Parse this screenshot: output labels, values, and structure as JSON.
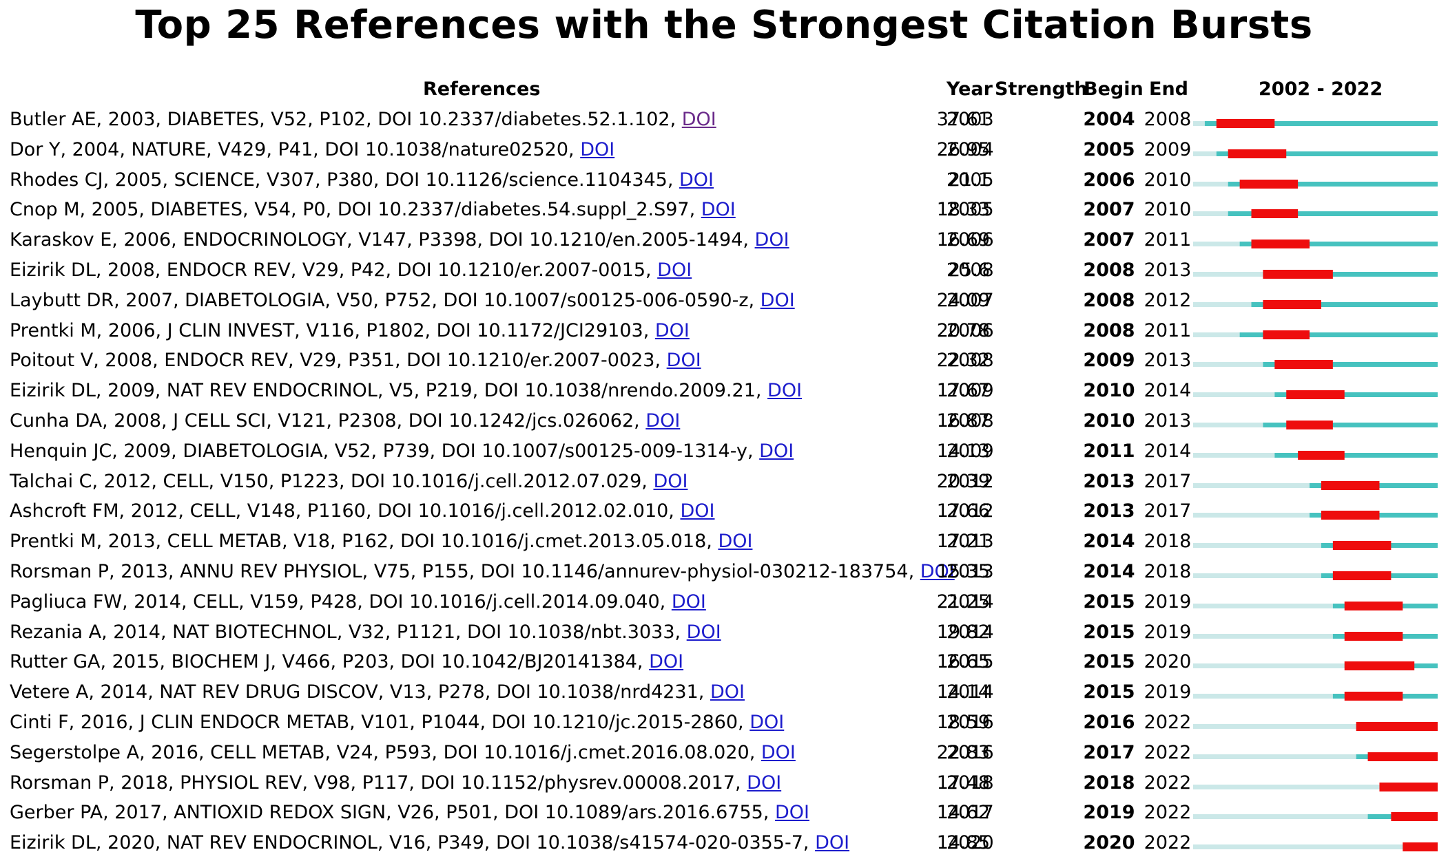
{
  "title": "Top 25 References with the Strongest Citation Bursts",
  "headers": {
    "references": "References",
    "year": "Year",
    "strength": "Strength",
    "begin": "Begin",
    "end": "End",
    "range": "2002 - 2022"
  },
  "colors": {
    "before_publication": "#cbe8e8",
    "after_publication": "#46c2bf",
    "burst": "#ee0d0d",
    "link": "#1c1ccc",
    "link_visited": "#6a2a8a"
  },
  "chart_data": {
    "type": "table",
    "title": "Top 25 References with the Strongest Citation Bursts",
    "timeline_range": [
      2002,
      2022
    ],
    "columns": [
      "References",
      "Year",
      "Strength",
      "Begin",
      "End",
      "2002 - 2022"
    ],
    "rows": [
      {
        "reference": "Butler AE, 2003, DIABETES, V52, P102, DOI 10.2337/diabetes.52.1.102, ",
        "link": "DOI",
        "year": "2003",
        "strength": "37.61",
        "begin": "2004",
        "end": "2008"
      },
      {
        "reference": "Dor Y, 2004, NATURE, V429, P41, DOI 10.1038/nature02520, ",
        "link": "DOI",
        "year": "2004",
        "strength": "26.95",
        "begin": "2005",
        "end": "2009"
      },
      {
        "reference": "Rhodes CJ, 2005, SCIENCE, V307, P380, DOI 10.1126/science.1104345, ",
        "link": "DOI",
        "year": "2005",
        "strength": "21.1",
        "begin": "2006",
        "end": "2010"
      },
      {
        "reference": "Cnop M, 2005, DIABETES, V54, P0, DOI 10.2337/diabetes.54.suppl_2.S97, ",
        "link": "DOI",
        "year": "2005",
        "strength": "18.33",
        "begin": "2007",
        "end": "2010"
      },
      {
        "reference": "Karaskov E, 2006, ENDOCRINOLOGY, V147, P3398, DOI 10.1210/en.2005-1494, ",
        "link": "DOI",
        "year": "2006",
        "strength": "16.69",
        "begin": "2007",
        "end": "2011"
      },
      {
        "reference": "Eizirik DL, 2008, ENDOCR REV, V29, P42, DOI 10.1210/er.2007-0015, ",
        "link": "DOI",
        "year": "2008",
        "strength": "25.6",
        "begin": "2008",
        "end": "2013"
      },
      {
        "reference": "Laybutt DR, 2007, DIABETOLOGIA, V50, P752, DOI 10.1007/s00125-006-0590-z, ",
        "link": "DOI",
        "year": "2007",
        "strength": "24.09",
        "begin": "2008",
        "end": "2012"
      },
      {
        "reference": "Prentki M, 2006, J CLIN INVEST, V116, P1802, DOI 10.1172/JCI29103, ",
        "link": "DOI",
        "year": "2006",
        "strength": "20.78",
        "begin": "2008",
        "end": "2011"
      },
      {
        "reference": "Poitout V, 2008, ENDOCR REV, V29, P351, DOI 10.1210/er.2007-0023, ",
        "link": "DOI",
        "year": "2008",
        "strength": "22.32",
        "begin": "2009",
        "end": "2013"
      },
      {
        "reference": "Eizirik DL, 2009, NAT REV ENDOCRINOL, V5, P219, DOI 10.1038/nrendo.2009.21, ",
        "link": "DOI",
        "year": "2009",
        "strength": "17.67",
        "begin": "2010",
        "end": "2014"
      },
      {
        "reference": "Cunha DA, 2008, J CELL SCI, V121, P2308, DOI 10.1242/jcs.026062, ",
        "link": "DOI",
        "year": "2008",
        "strength": "16.87",
        "begin": "2010",
        "end": "2013"
      },
      {
        "reference": "Henquin JC, 2009, DIABETOLOGIA, V52, P739, DOI 10.1007/s00125-009-1314-y, ",
        "link": "DOI",
        "year": "2009",
        "strength": "14.13",
        "begin": "2011",
        "end": "2014"
      },
      {
        "reference": "Talchai C, 2012, CELL, V150, P1223, DOI 10.1016/j.cell.2012.07.029, ",
        "link": "DOI",
        "year": "2012",
        "strength": "20.39",
        "begin": "2013",
        "end": "2017"
      },
      {
        "reference": "Ashcroft FM, 2012, CELL, V148, P1160, DOI 10.1016/j.cell.2012.02.010, ",
        "link": "DOI",
        "year": "2012",
        "strength": "17.66",
        "begin": "2013",
        "end": "2017"
      },
      {
        "reference": "Prentki M, 2013, CELL METAB, V18, P162, DOI 10.1016/j.cmet.2013.05.018, ",
        "link": "DOI",
        "year": "2013",
        "strength": "17.21",
        "begin": "2014",
        "end": "2018"
      },
      {
        "reference": "Rorsman P, 2013, ANNU REV PHYSIOL, V75, P155, DOI 10.1146/annurev-physiol-030212-183754, ",
        "link": "DOI",
        "year": "2013",
        "strength": "15.35",
        "begin": "2014",
        "end": "2018"
      },
      {
        "reference": "Pagliuca FW, 2014, CELL, V159, P428, DOI 10.1016/j.cell.2014.09.040, ",
        "link": "DOI",
        "year": "2014",
        "strength": "21.25",
        "begin": "2015",
        "end": "2019"
      },
      {
        "reference": "Rezania A, 2014, NAT BIOTECHNOL, V32, P1121, DOI 10.1038/nbt.3033, ",
        "link": "DOI",
        "year": "2014",
        "strength": "19.82",
        "begin": "2015",
        "end": "2019"
      },
      {
        "reference": "Rutter GA, 2015, BIOCHEM J, V466, P203, DOI 10.1042/BJ20141384, ",
        "link": "DOI",
        "year": "2015",
        "strength": "16.65",
        "begin": "2015",
        "end": "2020"
      },
      {
        "reference": "Vetere A, 2014, NAT REV DRUG DISCOV, V13, P278, DOI 10.1038/nrd4231, ",
        "link": "DOI",
        "year": "2014",
        "strength": "14.14",
        "begin": "2015",
        "end": "2019"
      },
      {
        "reference": "Cinti F, 2016, J CLIN ENDOCR METAB, V101, P1044, DOI 10.1210/jc.2015-2860, ",
        "link": "DOI",
        "year": "2016",
        "strength": "18.59",
        "begin": "2016",
        "end": "2022"
      },
      {
        "reference": "Segerstolpe A, 2016, CELL METAB, V24, P593, DOI 10.1016/j.cmet.2016.08.020, ",
        "link": "DOI",
        "year": "2016",
        "strength": "22.83",
        "begin": "2017",
        "end": "2022"
      },
      {
        "reference": "Rorsman P, 2018, PHYSIOL REV, V98, P117, DOI 10.1152/physrev.00008.2017, ",
        "link": "DOI",
        "year": "2018",
        "strength": "17.48",
        "begin": "2018",
        "end": "2022"
      },
      {
        "reference": "Gerber PA, 2017, ANTIOXID REDOX SIGN, V26, P501, DOI 10.1089/ars.2016.6755, ",
        "link": "DOI",
        "year": "2017",
        "strength": "14.62",
        "begin": "2019",
        "end": "2022"
      },
      {
        "reference": "Eizirik DL, 2020, NAT REV ENDOCRINOL, V16, P349, DOI 10.1038/s41574-020-0355-7, ",
        "link": "DOI",
        "year": "2020",
        "strength": "14.85",
        "begin": "2020",
        "end": "2022"
      }
    ]
  }
}
